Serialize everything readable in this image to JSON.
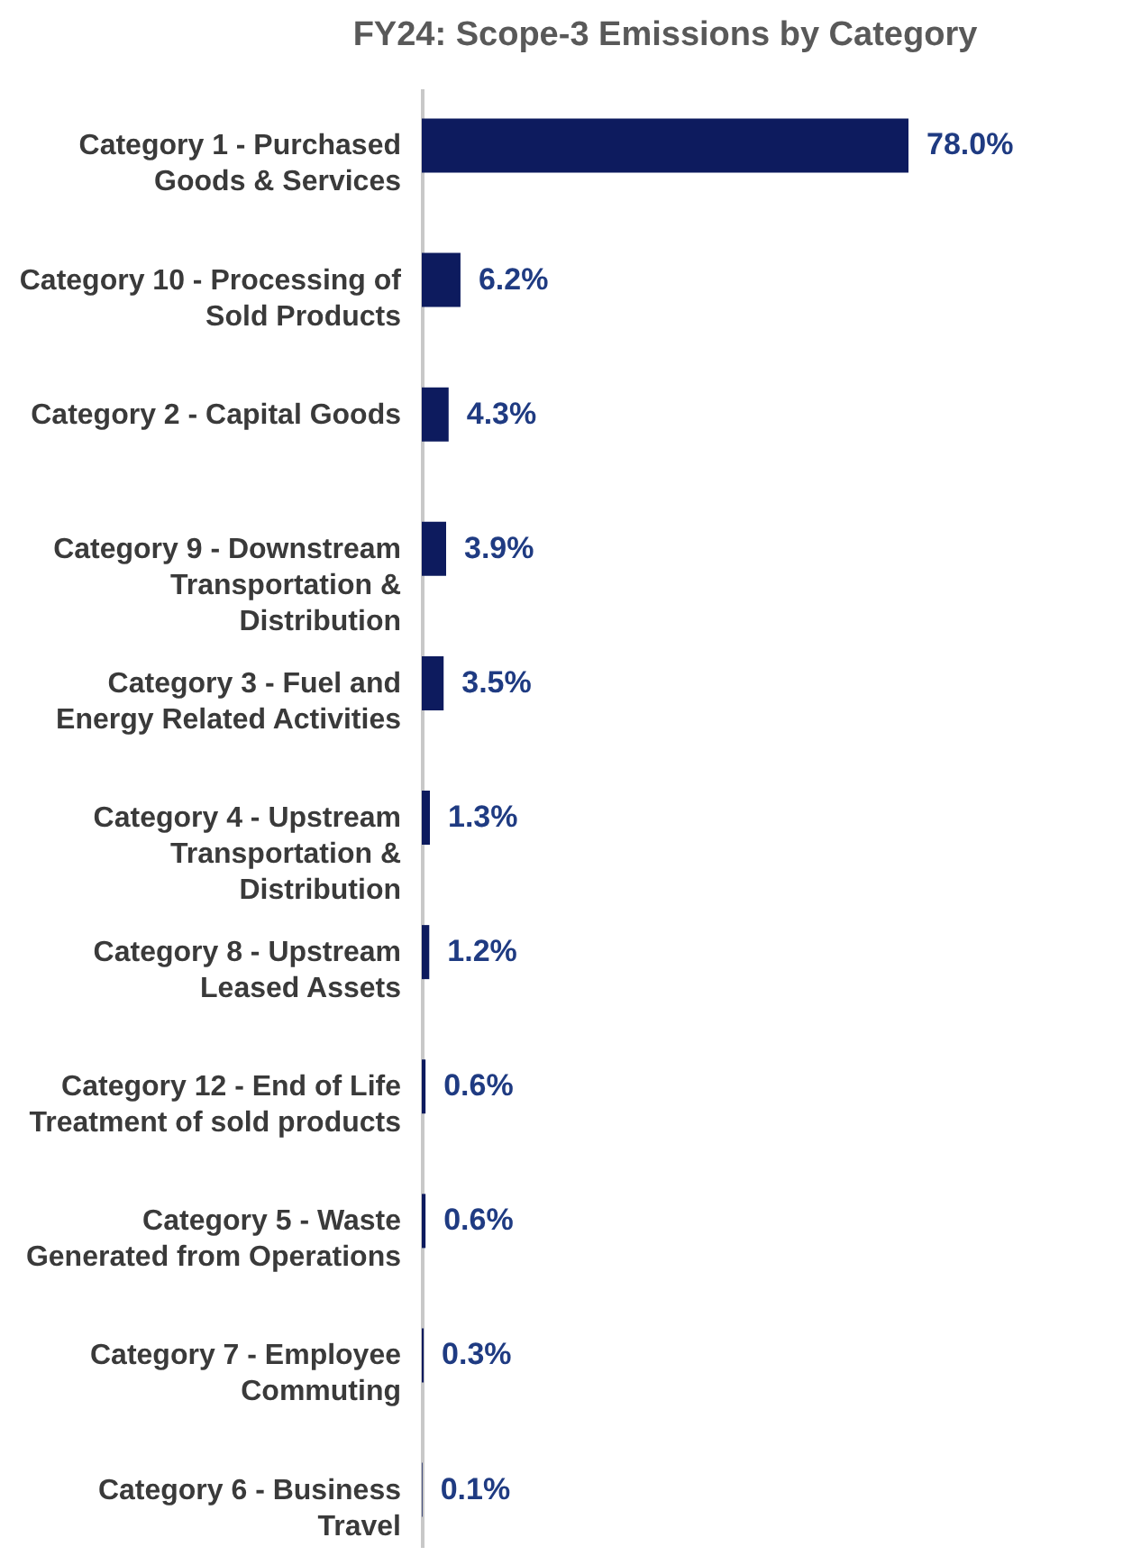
{
  "chart_data": {
    "type": "bar",
    "orientation": "horizontal",
    "title": "FY24: Scope-3 Emissions by Category",
    "categories": [
      "Category 1 - Purchased Goods & Services",
      "Category 10 - Processing of Sold Products",
      "Category 2 - Capital Goods",
      "Category 9 - Downstream Transportation & Distribution",
      "Category 3 - Fuel and Energy Related Activities",
      "Category 4 - Upstream Transportation & Distribution",
      "Category 8 - Upstream Leased Assets",
      "Category 12 - End of Life Treatment of sold products",
      "Category 5 - Waste Generated from Operations",
      "Category 7 - Employee Commuting",
      "Category 6 - Business Travel"
    ],
    "values": [
      78.0,
      6.2,
      4.3,
      3.9,
      3.5,
      1.3,
      1.2,
      0.6,
      0.6,
      0.3,
      0.1
    ],
    "value_labels": [
      "78.0%",
      "6.2%",
      "4.3%",
      "3.9%",
      "3.5%",
      "1.3%",
      "1.2%",
      "0.6%",
      "0.6%",
      "0.3%",
      "0.1%"
    ],
    "color": "#0d1b5e"
  }
}
